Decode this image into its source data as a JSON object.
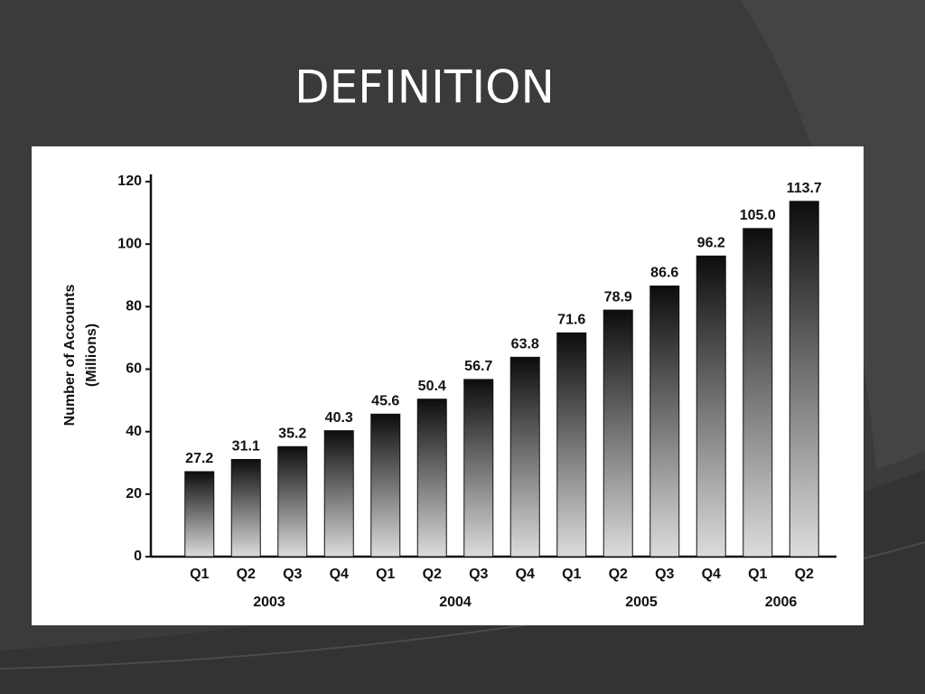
{
  "slide": {
    "title": "DEFINITION"
  },
  "chart_data": {
    "type": "bar",
    "ylabel": [
      "Number of Accounts",
      "(Millions)"
    ],
    "groups": [
      {
        "label": "2003",
        "categories": [
          "Q1",
          "Q2",
          "Q3",
          "Q4"
        ],
        "values": [
          27.2,
          31.1,
          35.2,
          40.3
        ],
        "value_labels": [
          "27.2",
          "31.1",
          "35.2",
          "40.3"
        ]
      },
      {
        "label": "2004",
        "categories": [
          "Q1",
          "Q2",
          "Q3",
          "Q4"
        ],
        "values": [
          45.6,
          50.4,
          56.7,
          63.8
        ],
        "value_labels": [
          "45.6",
          "50.4",
          "56.7",
          "63.8"
        ]
      },
      {
        "label": "2005",
        "categories": [
          "Q1",
          "Q2",
          "Q3",
          "Q4"
        ],
        "values": [
          71.6,
          78.9,
          86.6,
          96.2
        ],
        "value_labels": [
          "71.6",
          "78.9",
          "86.6",
          "96.2"
        ]
      },
      {
        "label": "2006",
        "categories": [
          "Q1",
          "Q2"
        ],
        "values": [
          105.0,
          113.7
        ],
        "value_labels": [
          "105.0",
          "113.7"
        ]
      }
    ],
    "ylim": [
      0,
      120
    ],
    "yticks": [
      0,
      20,
      40,
      60,
      80,
      100,
      120
    ],
    "gradient": [
      "#0d0d0d",
      "#dcdcdc"
    ],
    "grid": false
  }
}
